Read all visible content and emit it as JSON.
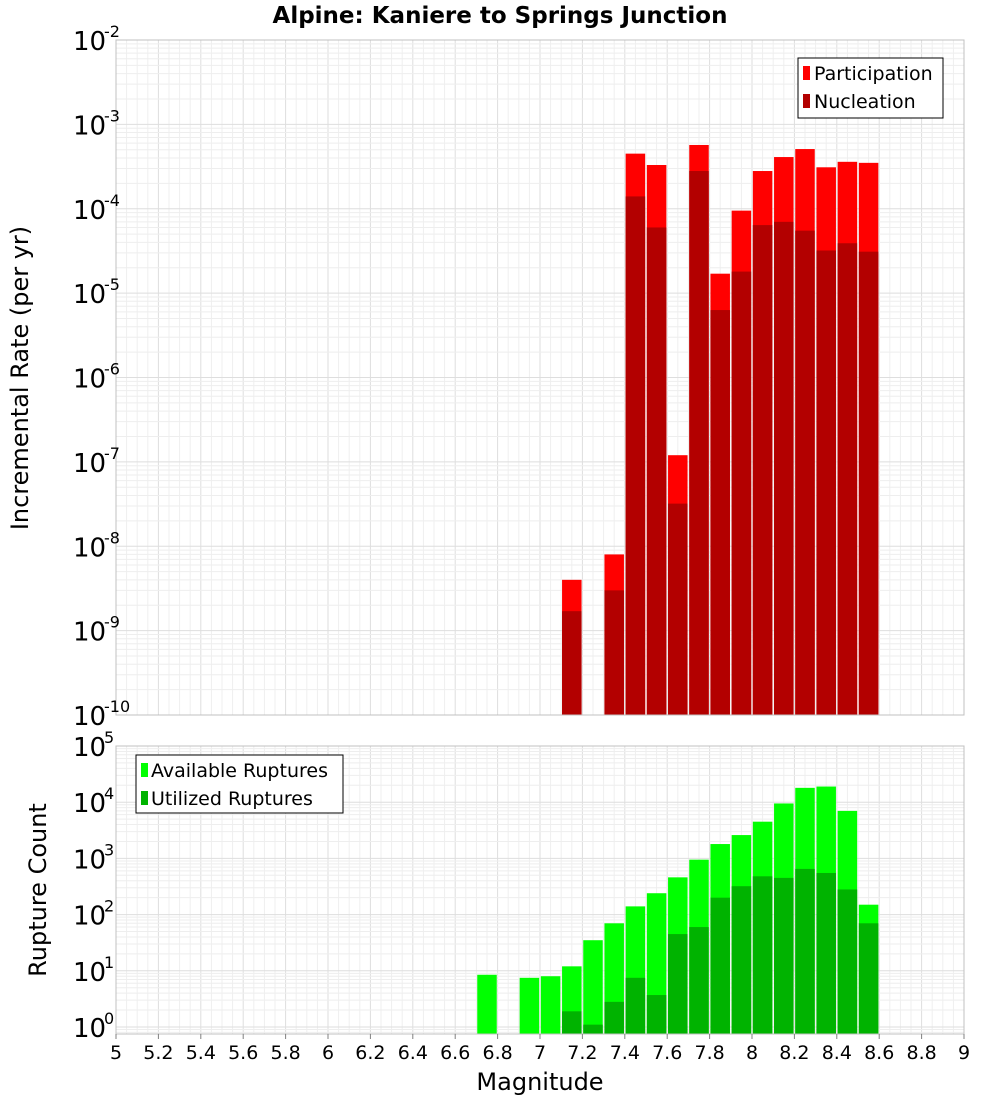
{
  "title": "Alpine: Kaniere to Springs Junction",
  "colors": {
    "participation": "#ff0000",
    "nucleation": "#b30000",
    "available": "#00ff00",
    "utilized": "#00b300",
    "grid": "#e6e6e6",
    "frame": "#c0c0c0"
  },
  "chart_data": [
    {
      "type": "bar",
      "ylabel": "Incremental Rate (per yr)",
      "y_scale": "log",
      "ylim": [
        1e-10,
        0.01
      ],
      "xlim": [
        5,
        9
      ],
      "grid": true,
      "legend_position": "top-right",
      "y_ticks": [
        {
          "base": "10",
          "exp": "-10",
          "value": 1e-10
        },
        {
          "base": "10",
          "exp": "-9",
          "value": 1e-09
        },
        {
          "base": "10",
          "exp": "-8",
          "value": 1e-08
        },
        {
          "base": "10",
          "exp": "-7",
          "value": 1e-07
        },
        {
          "base": "10",
          "exp": "-6",
          "value": 1e-06
        },
        {
          "base": "10",
          "exp": "-5",
          "value": 1e-05
        },
        {
          "base": "10",
          "exp": "-4",
          "value": 0.0001
        },
        {
          "base": "10",
          "exp": "-3",
          "value": 0.001
        },
        {
          "base": "10",
          "exp": "-2",
          "value": 0.01
        }
      ],
      "x": [
        7.15,
        7.35,
        7.45,
        7.55,
        7.65,
        7.75,
        7.85,
        7.95,
        8.05,
        8.15,
        8.25,
        8.35,
        8.45,
        8.55
      ],
      "series": [
        {
          "name": "Participation",
          "values": [
            4e-09,
            8e-09,
            0.00045,
            0.00033,
            1.2e-07,
            0.00057,
            1.7e-05,
            9.5e-05,
            0.00028,
            0.00041,
            0.00051,
            0.00031,
            0.00036,
            0.00035
          ]
        },
        {
          "name": "Nucleation",
          "values": [
            1.7e-09,
            3e-09,
            0.00014,
            6e-05,
            3.2e-08,
            0.00028,
            6.3e-06,
            1.8e-05,
            6.4e-05,
            7e-05,
            5.5e-05,
            3.2e-05,
            3.9e-05,
            3.1e-05
          ]
        }
      ]
    },
    {
      "type": "bar",
      "ylabel": "Rupture Count",
      "xlabel": "Magnitude",
      "y_scale": "log",
      "ylim": [
        0.75,
        100000.0
      ],
      "xlim": [
        5,
        9
      ],
      "grid": true,
      "legend_position": "top-left",
      "y_ticks": [
        {
          "base": "10",
          "exp": "0",
          "value": 1
        },
        {
          "base": "10",
          "exp": "1",
          "value": 10
        },
        {
          "base": "10",
          "exp": "2",
          "value": 100
        },
        {
          "base": "10",
          "exp": "3",
          "value": 1000
        },
        {
          "base": "10",
          "exp": "4",
          "value": 10000
        },
        {
          "base": "10",
          "exp": "5",
          "value": 100000
        }
      ],
      "x_ticks": [
        "5",
        "5.2",
        "5.4",
        "5.6",
        "5.8",
        "6",
        "6.2",
        "6.4",
        "6.6",
        "6.8",
        "7",
        "7.2",
        "7.4",
        "7.6",
        "7.8",
        "8",
        "8.2",
        "8.4",
        "8.6",
        "8.8",
        "9"
      ],
      "x": [
        6.75,
        6.95,
        7.05,
        7.15,
        7.25,
        7.35,
        7.45,
        7.55,
        7.65,
        7.75,
        7.85,
        7.95,
        8.05,
        8.15,
        8.25,
        8.35,
        8.45,
        8.55
      ],
      "series": [
        {
          "name": "Available Ruptures",
          "values": [
            8.5,
            7.5,
            8,
            12,
            35,
            70,
            140,
            240,
            460,
            950,
            1800,
            2600,
            4500,
            9500,
            18000,
            19000,
            7000,
            150
          ]
        },
        {
          "name": "Utilized Ruptures",
          "values": [
            0,
            0,
            0,
            1.9,
            1.1,
            2.8,
            7.5,
            3.7,
            45,
            60,
            200,
            320,
            480,
            450,
            650,
            550,
            280,
            70
          ]
        }
      ]
    }
  ]
}
